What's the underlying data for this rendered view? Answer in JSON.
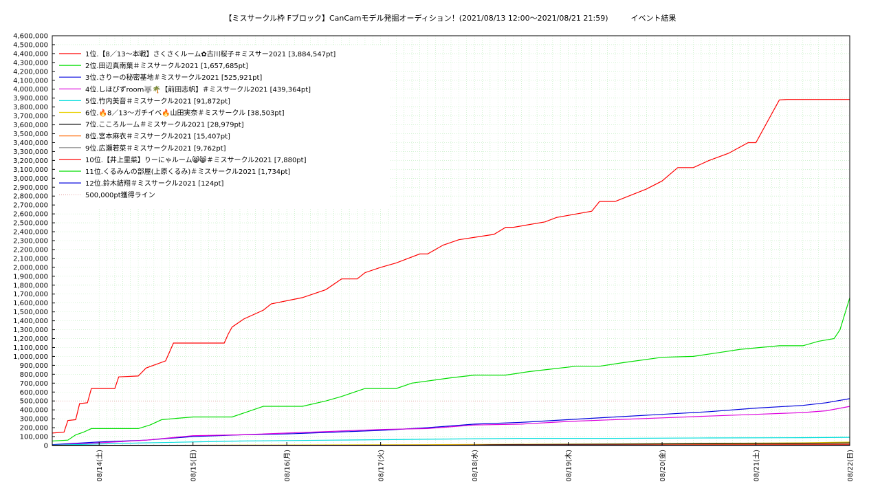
{
  "chart_data": {
    "type": "line",
    "title": "【ミスサークル枠 Fブロック】CanCamモデル発掘オーディション！(2021/08/13 12:00〜2021/08/21 21:59)　　　イベント結果",
    "xlabel": "",
    "ylabel": "",
    "xlim": [
      "2021-08-13 12:00",
      "2021-08-22 00:00"
    ],
    "ylim": [
      0,
      4600000
    ],
    "y_tick_step": 100000,
    "x_ticks": [
      "08/14(土)",
      "08/15(日)",
      "08/16(月)",
      "08/17(火)",
      "08/18(水)",
      "08/19(木)",
      "08/20(金)",
      "08/21(土)",
      "08/22(日)"
    ],
    "x_tick_dates": [
      "2021-08-14",
      "2021-08-15",
      "2021-08-16",
      "2021-08-17",
      "2021-08-18",
      "2021-08-19",
      "2021-08-20",
      "2021-08-21",
      "2021-08-22"
    ],
    "grid": true,
    "legend_position": "top-left",
    "threshold": {
      "name": "500,000pt獲得ライン",
      "value": 500000,
      "color": "#e09090"
    },
    "series": [
      {
        "name": "1位.【8／13〜本戦】さくさくルーム✿古川桜子＃ミスサー2021 [3,884,547pt]",
        "color": "#ff0000",
        "x": [
          "2021-08-13 12:00",
          "2021-08-13 15:00",
          "2021-08-13 16:00",
          "2021-08-13 18:00",
          "2021-08-13 19:00",
          "2021-08-13 21:00",
          "2021-08-13 22:00",
          "2021-08-14 04:00",
          "2021-08-14 05:00",
          "2021-08-14 10:00",
          "2021-08-14 12:00",
          "2021-08-14 17:00",
          "2021-08-14 19:00",
          "2021-08-15 08:00",
          "2021-08-15 09:00",
          "2021-08-15 10:00",
          "2021-08-15 13:00",
          "2021-08-15 18:00",
          "2021-08-15 20:00",
          "2021-08-16 04:00",
          "2021-08-16 10:00",
          "2021-08-16 14:00",
          "2021-08-16 18:00",
          "2021-08-16 20:00",
          "2021-08-17 00:00",
          "2021-08-17 04:00",
          "2021-08-17 10:00",
          "2021-08-17 12:00",
          "2021-08-17 16:00",
          "2021-08-17 20:00",
          "2021-08-18 05:00",
          "2021-08-18 08:00",
          "2021-08-18 10:00",
          "2021-08-18 18:00",
          "2021-08-18 21:00",
          "2021-08-19 06:00",
          "2021-08-19 08:00",
          "2021-08-19 12:00",
          "2021-08-19 16:00",
          "2021-08-19 20:00",
          "2021-08-20 00:00",
          "2021-08-20 04:00",
          "2021-08-20 08:00",
          "2021-08-20 12:00",
          "2021-08-20 17:00",
          "2021-08-20 22:00",
          "2021-08-21 00:00",
          "2021-08-21 06:00",
          "2021-08-21 08:00",
          "2021-08-21 12:00",
          "2021-08-21 16:00",
          "2021-08-21 17:00",
          "2021-08-21 20:00",
          "2021-08-21 21:00",
          "2021-08-21 21:30",
          "2021-08-21 22:00",
          "2021-08-22 00:00"
        ],
        "values": [
          140000,
          150000,
          280000,
          290000,
          470000,
          480000,
          640000,
          640000,
          770000,
          780000,
          870000,
          950000,
          1150000,
          1150000,
          1250000,
          1330000,
          1420000,
          1520000,
          1590000,
          1660000,
          1750000,
          1870000,
          1870000,
          1940000,
          2000000,
          2050000,
          2150000,
          2150000,
          2250000,
          2310000,
          2370000,
          2450000,
          2450000,
          2510000,
          2560000,
          2630000,
          2740000,
          2740000,
          2810000,
          2880000,
          2970000,
          3120000,
          3120000,
          3200000,
          3280000,
          3400000,
          3400000,
          3880000,
          3884547,
          3884547,
          3884547,
          3884547,
          3884547,
          3884547,
          3884547,
          3884547,
          3884547
        ]
      },
      {
        "name": "2位.田辺真南葉＃ミスサークル2021 [1,657,685pt]",
        "color": "#00dd00",
        "x": [
          "2021-08-13 12:00",
          "2021-08-13 16:00",
          "2021-08-13 18:00",
          "2021-08-13 20:00",
          "2021-08-13 22:00",
          "2021-08-14 10:00",
          "2021-08-14 13:00",
          "2021-08-14 16:00",
          "2021-08-15 00:00",
          "2021-08-15 10:00",
          "2021-08-15 14:00",
          "2021-08-15 18:00",
          "2021-08-16 04:00",
          "2021-08-16 10:00",
          "2021-08-16 14:00",
          "2021-08-16 20:00",
          "2021-08-17 04:00",
          "2021-08-17 08:00",
          "2021-08-17 18:00",
          "2021-08-18 00:00",
          "2021-08-18 08:00",
          "2021-08-18 14:00",
          "2021-08-18 18:00",
          "2021-08-19 02:00",
          "2021-08-19 08:00",
          "2021-08-19 14:00",
          "2021-08-20 00:00",
          "2021-08-20 08:00",
          "2021-08-20 14:00",
          "2021-08-20 20:00",
          "2021-08-21 06:00",
          "2021-08-21 12:00",
          "2021-08-21 16:00",
          "2021-08-21 20:00",
          "2021-08-21 21:30",
          "2021-08-22 00:00"
        ],
        "values": [
          50000,
          60000,
          120000,
          150000,
          190000,
          190000,
          230000,
          290000,
          320000,
          320000,
          380000,
          440000,
          440000,
          500000,
          550000,
          640000,
          640000,
          700000,
          760000,
          790000,
          790000,
          830000,
          850000,
          890000,
          890000,
          930000,
          990000,
          1000000,
          1040000,
          1080000,
          1120000,
          1120000,
          1170000,
          1200000,
          1300000,
          1657685
        ]
      },
      {
        "name": "3位.さりーの秘密基地＃ミスサークル2021 [525,921pt]",
        "color": "#0000dd",
        "x": [
          "2021-08-13 12:00",
          "2021-08-14 00:00",
          "2021-08-14 12:00",
          "2021-08-15 00:00",
          "2021-08-15 12:00",
          "2021-08-16 00:00",
          "2021-08-16 12:00",
          "2021-08-17 00:00",
          "2021-08-17 12:00",
          "2021-08-18 00:00",
          "2021-08-18 12:00",
          "2021-08-19 00:00",
          "2021-08-19 12:00",
          "2021-08-20 00:00",
          "2021-08-20 12:00",
          "2021-08-21 00:00",
          "2021-08-21 12:00",
          "2021-08-21 18:00",
          "2021-08-22 00:00"
        ],
        "values": [
          10000,
          40000,
          60000,
          100000,
          120000,
          130000,
          150000,
          170000,
          200000,
          240000,
          260000,
          290000,
          320000,
          350000,
          380000,
          420000,
          450000,
          480000,
          525921
        ]
      },
      {
        "name": "4位.しほぴずroom🐺🌴【前田志帆】＃ミスサークル2021 [439,364pt]",
        "color": "#dd00dd",
        "x": [
          "2021-08-13 12:00",
          "2021-08-14 00:00",
          "2021-08-14 12:00",
          "2021-08-15 00:00",
          "2021-08-15 12:00",
          "2021-08-16 00:00",
          "2021-08-16 12:00",
          "2021-08-17 00:00",
          "2021-08-17 12:00",
          "2021-08-18 00:00",
          "2021-08-18 12:00",
          "2021-08-19 00:00",
          "2021-08-19 12:00",
          "2021-08-20 00:00",
          "2021-08-20 12:00",
          "2021-08-21 00:00",
          "2021-08-21 12:00",
          "2021-08-21 18:00",
          "2021-08-22 00:00"
        ],
        "values": [
          5000,
          30000,
          60000,
          110000,
          120000,
          140000,
          160000,
          180000,
          190000,
          230000,
          240000,
          270000,
          290000,
          310000,
          330000,
          350000,
          370000,
          390000,
          439364
        ]
      },
      {
        "name": "5位.竹内美音＃ミスサークル2021 [91,872pt]",
        "color": "#00dddd",
        "x": [
          "2021-08-13 12:00",
          "2021-08-14 12:00",
          "2021-08-15 12:00",
          "2021-08-16 12:00",
          "2021-08-17 12:00",
          "2021-08-18 12:00",
          "2021-08-19 12:00",
          "2021-08-20 12:00",
          "2021-08-21 12:00",
          "2021-08-22 00:00"
        ],
        "values": [
          5000,
          30000,
          50000,
          60000,
          70000,
          80000,
          80000,
          85000,
          88000,
          91872
        ]
      },
      {
        "name": "6位.🔥8／13〜ガチイベ🔥山田実奈＃ミスサークル [38,503pt]",
        "color": "#e8d000",
        "x": [
          "2021-08-13 12:00",
          "2021-08-15 12:00",
          "2021-08-17 12:00",
          "2021-08-19 12:00",
          "2021-08-21 12:00",
          "2021-08-22 00:00"
        ],
        "values": [
          1000,
          5000,
          10000,
          18000,
          30000,
          38503
        ]
      },
      {
        "name": "7位.こころルーム＃ミスサークル2021 [28,979pt]",
        "color": "#000000",
        "x": [
          "2021-08-13 12:00",
          "2021-08-17 12:00",
          "2021-08-18 04:00",
          "2021-08-19 12:00",
          "2021-08-21 12:00",
          "2021-08-22 00:00"
        ],
        "values": [
          0,
          0,
          10000,
          15000,
          25000,
          28979
        ]
      },
      {
        "name": "8位.宮本麻衣＃ミスサークル2021 [15,407pt]",
        "color": "#ff6600",
        "x": [
          "2021-08-13 12:00",
          "2021-08-16 12:00",
          "2021-08-19 12:00",
          "2021-08-22 00:00"
        ],
        "values": [
          0,
          3000,
          8000,
          15407
        ]
      },
      {
        "name": "9位.広瀬若菜＃ミスサークル2021 [9,762pt]",
        "color": "#888888",
        "x": [
          "2021-08-13 12:00",
          "2021-08-17 12:00",
          "2021-08-22 00:00"
        ],
        "values": [
          0,
          4000,
          9762
        ]
      },
      {
        "name": "10位.【井上里菜】りーにゃルーム😸😸＃ミスサークル2021 [7,880pt]",
        "color": "#ff0000",
        "x": [
          "2021-08-13 12:00",
          "2021-08-17 12:00",
          "2021-08-22 00:00"
        ],
        "values": [
          0,
          3000,
          7880
        ]
      },
      {
        "name": "11位.くるみんの部屋(上原くるみ)＃ミスサークル2021 [1,734pt]",
        "color": "#00dd00",
        "x": [
          "2021-08-13 12:00",
          "2021-08-22 00:00"
        ],
        "values": [
          0,
          1734
        ]
      },
      {
        "name": "12位.鈴木結翔＃ミスサークル2021 [124pt]",
        "color": "#0000dd",
        "x": [
          "2021-08-13 12:00",
          "2021-08-22 00:00"
        ],
        "values": [
          0,
          124
        ]
      }
    ]
  }
}
